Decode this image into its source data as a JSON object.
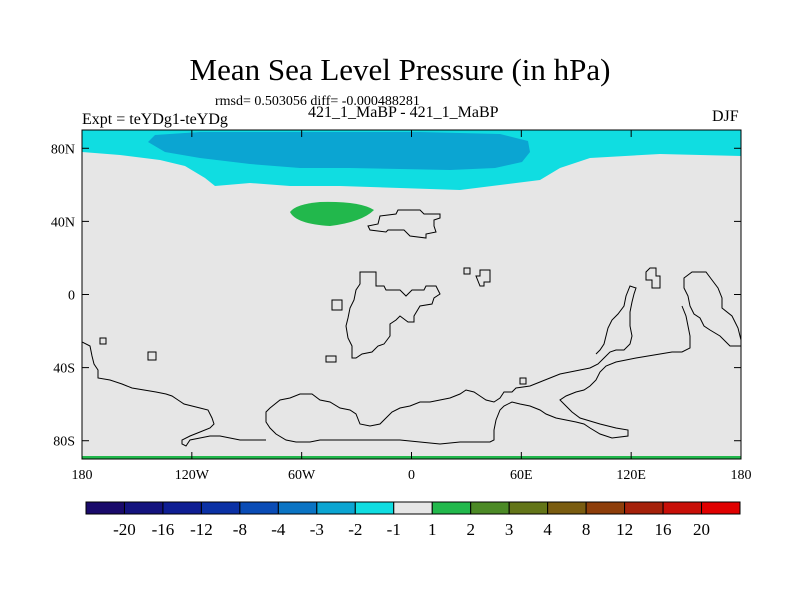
{
  "title": "Mean Sea Level Pressure (in hPa)",
  "subtitle": "rmsd= 0.503056 diff= -0.000488281",
  "left_label": "Expt = teYDg1-teYDg",
  "center_label": "421_1_MaBP - 421_1_MaBP",
  "right_label": "DJF",
  "chart_data": {
    "type": "heatmap",
    "title": "Mean Sea Level Pressure (in hPa)",
    "projection": "cylindrical equidistant",
    "xlim": [
      -180,
      180
    ],
    "ylim": [
      -90,
      90
    ],
    "x_ticks": [
      {
        "value": -180,
        "label": "180"
      },
      {
        "value": -120,
        "label": "120W"
      },
      {
        "value": -60,
        "label": "60W"
      },
      {
        "value": 0,
        "label": "0"
      },
      {
        "value": 60,
        "label": "60E"
      },
      {
        "value": 120,
        "label": "120E"
      },
      {
        "value": 180,
        "label": "180"
      }
    ],
    "y_ticks": [
      {
        "value": 80,
        "label": "80N"
      },
      {
        "value": 40,
        "label": "40N"
      },
      {
        "value": 0,
        "label": "0"
      },
      {
        "value": -40,
        "label": "40S"
      },
      {
        "value": -80,
        "label": "80S"
      }
    ],
    "colorbar": {
      "labels": [
        "-20",
        "-16",
        "-12",
        "-8",
        "-4",
        "-3",
        "-2",
        "-1",
        "1",
        "2",
        "3",
        "4",
        "8",
        "12",
        "16",
        "20"
      ],
      "colors": [
        "#1a0a6b",
        "#14137e",
        "#0f1e93",
        "#0b31a5",
        "#0a4cb6",
        "#0b74c4",
        "#0ba5d2",
        "#10dde1",
        "#e6e6e6",
        "#22b84c",
        "#4c8a26",
        "#637518",
        "#7a5c10",
        "#8e3e0a",
        "#a5210a",
        "#c80f08",
        "#e00000"
      ]
    },
    "fill_levels": {
      "background": "#e6e6e6",
      "light_cyan": "#10dde1",
      "cyan_blue": "#0ba5d2",
      "green": "#22b84c"
    }
  }
}
